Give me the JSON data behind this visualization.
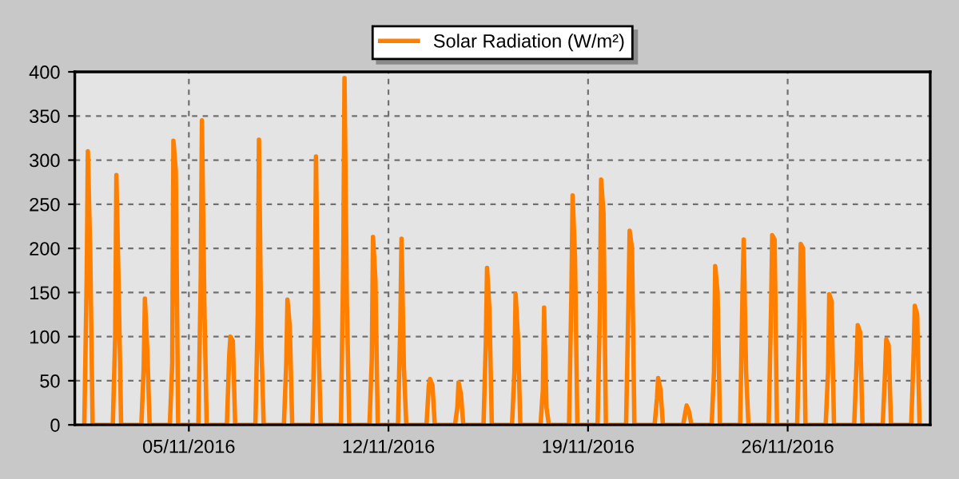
{
  "chart_data": {
    "type": "line",
    "xlim": [
      "2016-11-01",
      "2016-12-01"
    ],
    "ylim": [
      0,
      400
    ],
    "xticks": [
      {
        "value": "2016-11-05",
        "label": "05/11/2016"
      },
      {
        "value": "2016-11-12",
        "label": "12/11/2016"
      },
      {
        "value": "2016-11-19",
        "label": "19/11/2016"
      },
      {
        "value": "2016-11-26",
        "label": "26/11/2016"
      }
    ],
    "yticks": [
      0,
      50,
      100,
      150,
      200,
      250,
      300,
      350,
      400
    ],
    "grid": true,
    "legend": "top",
    "marker": "none",
    "line_style": "solid",
    "x": [
      "2016-11-01T08:00",
      "2016-11-01T10:00",
      "2016-11-01T11:00",
      "2016-11-01T13:00",
      "2016-11-01T15:00",
      "2016-11-02T08:00",
      "2016-11-02T10:00",
      "2016-11-02T11:00",
      "2016-11-02T13:00",
      "2016-11-02T15:00",
      "2016-11-03T08:00",
      "2016-11-03T10:00",
      "2016-11-03T11:00",
      "2016-11-03T13:00",
      "2016-11-03T15:00",
      "2016-11-04T08:00",
      "2016-11-04T10:00",
      "2016-11-04T11:00",
      "2016-11-04T13:00",
      "2016-11-04T15:00",
      "2016-11-05T08:00",
      "2016-11-05T10:00",
      "2016-11-05T11:00",
      "2016-11-05T13:00",
      "2016-11-05T15:00",
      "2016-11-06T08:00",
      "2016-11-06T10:00",
      "2016-11-06T11:00",
      "2016-11-06T13:00",
      "2016-11-06T15:00",
      "2016-11-07T08:00",
      "2016-11-07T10:00",
      "2016-11-07T11:00",
      "2016-11-07T13:00",
      "2016-11-07T15:00",
      "2016-11-08T08:00",
      "2016-11-08T10:00",
      "2016-11-08T11:00",
      "2016-11-08T13:00",
      "2016-11-08T15:00",
      "2016-11-09T08:00",
      "2016-11-09T10:00",
      "2016-11-09T11:00",
      "2016-11-09T13:00",
      "2016-11-09T15:00",
      "2016-11-10T08:00",
      "2016-11-10T10:00",
      "2016-11-10T11:00",
      "2016-11-10T13:00",
      "2016-11-10T15:00",
      "2016-11-11T08:00",
      "2016-11-11T10:00",
      "2016-11-11T11:00",
      "2016-11-11T13:00",
      "2016-11-11T15:00",
      "2016-11-12T08:00",
      "2016-11-12T10:00",
      "2016-11-12T11:00",
      "2016-11-12T13:00",
      "2016-11-12T15:00",
      "2016-11-13T08:00",
      "2016-11-13T10:00",
      "2016-11-13T11:00",
      "2016-11-13T13:00",
      "2016-11-13T15:00",
      "2016-11-14T08:00",
      "2016-11-14T10:00",
      "2016-11-14T11:00",
      "2016-11-14T13:00",
      "2016-11-14T15:00",
      "2016-11-15T08:00",
      "2016-11-15T10:00",
      "2016-11-15T11:00",
      "2016-11-15T13:00",
      "2016-11-15T15:00",
      "2016-11-16T08:00",
      "2016-11-16T10:00",
      "2016-11-16T11:00",
      "2016-11-16T13:00",
      "2016-11-16T15:00",
      "2016-11-17T08:00",
      "2016-11-17T10:00",
      "2016-11-17T11:00",
      "2016-11-17T13:00",
      "2016-11-17T15:00",
      "2016-11-18T08:00",
      "2016-11-18T10:00",
      "2016-11-18T11:00",
      "2016-11-18T13:00",
      "2016-11-18T15:00",
      "2016-11-19T08:00",
      "2016-11-19T10:00",
      "2016-11-19T11:00",
      "2016-11-19T13:00",
      "2016-11-19T15:00",
      "2016-11-20T08:00",
      "2016-11-20T10:00",
      "2016-11-20T11:00",
      "2016-11-20T13:00",
      "2016-11-20T15:00",
      "2016-11-21T08:00",
      "2016-11-21T10:00",
      "2016-11-21T11:00",
      "2016-11-21T13:00",
      "2016-11-21T15:00",
      "2016-11-22T08:00",
      "2016-11-22T10:00",
      "2016-11-22T11:00",
      "2016-11-22T13:00",
      "2016-11-22T15:00",
      "2016-11-23T08:00",
      "2016-11-23T10:00",
      "2016-11-23T11:00",
      "2016-11-23T13:00",
      "2016-11-23T15:00",
      "2016-11-24T08:00",
      "2016-11-24T10:00",
      "2016-11-24T11:00",
      "2016-11-24T13:00",
      "2016-11-24T15:00",
      "2016-11-25T08:00",
      "2016-11-25T10:00",
      "2016-11-25T11:00",
      "2016-11-25T13:00",
      "2016-11-25T15:00",
      "2016-11-26T08:00",
      "2016-11-26T10:00",
      "2016-11-26T11:00",
      "2016-11-26T13:00",
      "2016-11-26T15:00",
      "2016-11-27T08:00",
      "2016-11-27T10:00",
      "2016-11-27T11:00",
      "2016-11-27T13:00",
      "2016-11-27T15:00",
      "2016-11-28T08:00",
      "2016-11-28T10:00",
      "2016-11-28T11:00",
      "2016-11-28T13:00",
      "2016-11-28T15:00",
      "2016-11-29T08:00",
      "2016-11-29T10:00",
      "2016-11-29T11:00",
      "2016-11-29T13:00",
      "2016-11-29T15:00",
      "2016-11-30T08:00",
      "2016-11-30T10:00",
      "2016-11-30T11:00",
      "2016-11-30T13:00",
      "2016-11-30T15:00"
    ],
    "series": [
      {
        "name": "Solar Radiation (W/m²)",
        "color": "#ff8000",
        "values": [
          0,
          165,
          310,
          195,
          0,
          0,
          100,
          283,
          150,
          0,
          0,
          65,
          143,
          85,
          0,
          0,
          70,
          322,
          288,
          0,
          0,
          165,
          345,
          140,
          0,
          0,
          80,
          100,
          95,
          0,
          0,
          125,
          323,
          90,
          0,
          0,
          70,
          142,
          110,
          0,
          0,
          125,
          304,
          100,
          0,
          0,
          190,
          393,
          138,
          0,
          0,
          75,
          213,
          165,
          0,
          0,
          115,
          211,
          65,
          0,
          0,
          45,
          52,
          45,
          0,
          0,
          20,
          48,
          35,
          0,
          0,
          95,
          178,
          130,
          0,
          0,
          60,
          148,
          100,
          0,
          0,
          40,
          133,
          20,
          0,
          0,
          150,
          260,
          190,
          0,
          0,
          130,
          278,
          240,
          0,
          0,
          140,
          220,
          200,
          0,
          0,
          30,
          53,
          40,
          0,
          0,
          15,
          22,
          15,
          0,
          0,
          60,
          180,
          150,
          0,
          0,
          150,
          210,
          60,
          0,
          0,
          130,
          215,
          210,
          0,
          0,
          120,
          205,
          200,
          0,
          0,
          60,
          148,
          140,
          0,
          0,
          70,
          113,
          105,
          0,
          0,
          60,
          97,
          90,
          0,
          0,
          80,
          135,
          125,
          0
        ]
      }
    ]
  }
}
